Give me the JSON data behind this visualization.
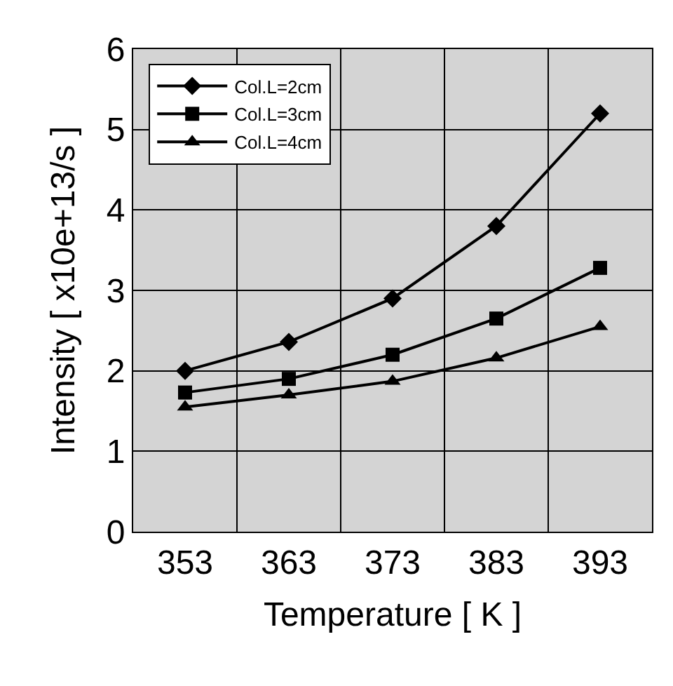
{
  "chart_data": {
    "type": "line",
    "xlabel": "Temperature [ K ]",
    "ylabel": "Intensity [ x10e+13/s ]",
    "categories": [
      "353",
      "363",
      "373",
      "383",
      "393"
    ],
    "series": [
      {
        "name": "Col.L=2cm",
        "color": "#000000",
        "marker": "diamond",
        "values": [
          2.0,
          2.36,
          2.9,
          3.8,
          5.2
        ]
      },
      {
        "name": "Col.L=3cm",
        "color": "#000000",
        "marker": "square",
        "values": [
          1.73,
          1.9,
          2.2,
          2.65,
          3.28
        ]
      },
      {
        "name": "Col.L=4cm",
        "color": "#000000",
        "marker": "triangle",
        "values": [
          1.55,
          1.7,
          1.87,
          2.16,
          2.55
        ]
      }
    ],
    "ylim": [
      0,
      6
    ],
    "yticks": [
      0,
      1,
      2,
      3,
      4,
      5,
      6
    ],
    "grid": true,
    "legend": "top left",
    "line_style": "solid"
  }
}
